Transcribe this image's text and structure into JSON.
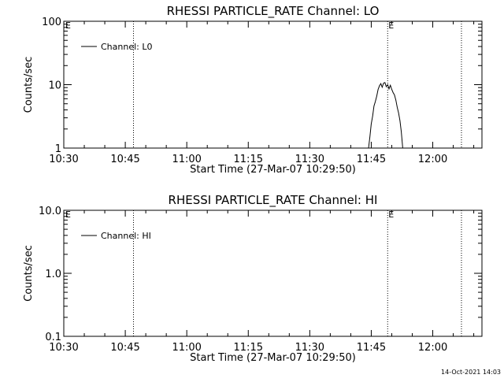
{
  "footer": "14-Oct-2021 14:03",
  "chart_data": [
    {
      "type": "line",
      "title": "RHESSI PARTICLE_RATE Channel: LO",
      "xlabel": "Start Time (27-Mar-07 10:29:50)",
      "ylabel": "Counts/sec",
      "yscale": "log",
      "ylim": [
        1,
        100
      ],
      "xlim": [
        "10:30",
        "12:12"
      ],
      "x_ticks": [
        "10:30",
        "10:45",
        "11:00",
        "11:15",
        "11:30",
        "11:45",
        "12:00"
      ],
      "y_ticks": [
        "1",
        "10",
        "100"
      ],
      "legend": {
        "placement": "top-left",
        "entries": [
          "Channel: L0"
        ]
      },
      "vlines": [
        {
          "time": "10:47",
          "style": "dotted",
          "label": ""
        },
        {
          "time": "11:49",
          "style": "dotted",
          "label": "E"
        },
        {
          "time": "12:07",
          "style": "dotted",
          "label": ""
        }
      ],
      "corner_mark": "E",
      "series": [
        {
          "name": "Channel: L0",
          "color": "#000000",
          "points": [
            [
              "11:44:20",
              1.0
            ],
            [
              "11:44:40",
              1.5
            ],
            [
              "11:45:00",
              2.4
            ],
            [
              "11:45:20",
              3.2
            ],
            [
              "11:45:40",
              4.6
            ],
            [
              "11:46:00",
              5.4
            ],
            [
              "11:46:20",
              6.6
            ],
            [
              "11:46:40",
              8.4
            ],
            [
              "11:47:00",
              9.6
            ],
            [
              "11:47:20",
              10.4
            ],
            [
              "11:47:40",
              9.1
            ],
            [
              "11:48:00",
              10.6
            ],
            [
              "11:48:20",
              10.8
            ],
            [
              "11:48:40",
              9.3
            ],
            [
              "11:49:00",
              10.0
            ],
            [
              "11:49:20",
              8.6
            ],
            [
              "11:49:40",
              9.8
            ],
            [
              "11:50:00",
              8.4
            ],
            [
              "11:50:20",
              7.5
            ],
            [
              "11:50:40",
              6.9
            ],
            [
              "11:51:00",
              5.7
            ],
            [
              "11:51:20",
              4.4
            ],
            [
              "11:51:40",
              3.6
            ],
            [
              "11:52:00",
              2.7
            ],
            [
              "11:52:20",
              1.8
            ],
            [
              "11:52:40",
              1.0
            ]
          ]
        }
      ]
    },
    {
      "type": "line",
      "title": "RHESSI PARTICLE_RATE Channel: HI",
      "xlabel": "Start Time (27-Mar-07 10:29:50)",
      "ylabel": "Counts/sec",
      "yscale": "log",
      "ylim": [
        0.1,
        10
      ],
      "xlim": [
        "10:30",
        "12:12"
      ],
      "x_ticks": [
        "10:30",
        "10:45",
        "11:00",
        "11:15",
        "11:30",
        "11:45",
        "12:00"
      ],
      "y_ticks": [
        "0.1",
        "1.0",
        "10.0"
      ],
      "legend": {
        "placement": "top-left",
        "entries": [
          "Channel: HI"
        ]
      },
      "vlines": [
        {
          "time": "10:47",
          "style": "dotted",
          "label": ""
        },
        {
          "time": "11:49",
          "style": "dotted",
          "label": "E"
        },
        {
          "time": "12:07",
          "style": "dotted",
          "label": ""
        }
      ],
      "corner_mark": "E",
      "series": [
        {
          "name": "Channel: HI",
          "color": "#000000",
          "points": []
        }
      ]
    }
  ]
}
